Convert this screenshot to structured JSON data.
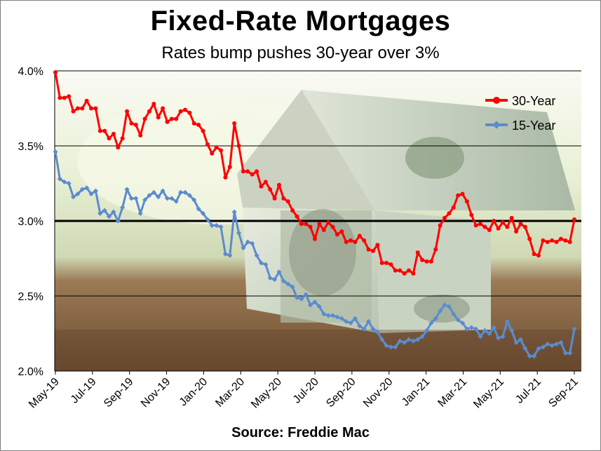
{
  "title": "Fixed-Rate Mortgages",
  "subtitle": "Rates bump pushes 30-year over 3%",
  "source": "Source: Freddie Mac",
  "colors": {
    "thirty": "#ff0000",
    "fifteen": "#5b8bd0"
  },
  "chart_data": {
    "type": "line",
    "title": "Fixed-Rate Mortgages",
    "subtitle": "Rates bump pushes 30-year over 3%",
    "xlabel": "",
    "ylabel": "",
    "ylim": [
      2.0,
      4.0
    ],
    "yticks": [
      "2.0%",
      "2.5%",
      "3.0%",
      "3.5%",
      "4.0%"
    ],
    "yticks_values": [
      2.0,
      2.5,
      3.0,
      3.5,
      4.0
    ],
    "xticks": [
      "May-19",
      "Jul-19",
      "Sep-19",
      "Nov-19",
      "Jan-20",
      "Mar-20",
      "May-20",
      "Jul-20",
      "Sep-20",
      "Nov-20",
      "Jan-21",
      "Mar-21",
      "May-21",
      "Jul-21",
      "Sep-21"
    ],
    "grid": "horizontal",
    "reference_line": 3.0,
    "legend_position": "top-right",
    "series": [
      {
        "name": "30-Year",
        "values": [
          3.99,
          3.82,
          3.82,
          3.83,
          3.73,
          3.75,
          3.75,
          3.8,
          3.75,
          3.75,
          3.6,
          3.6,
          3.55,
          3.58,
          3.49,
          3.55,
          3.73,
          3.65,
          3.64,
          3.57,
          3.68,
          3.73,
          3.78,
          3.69,
          3.75,
          3.66,
          3.68,
          3.68,
          3.73,
          3.74,
          3.72,
          3.65,
          3.64,
          3.6,
          3.51,
          3.45,
          3.49,
          3.47,
          3.29,
          3.36,
          3.65,
          3.5,
          3.33,
          3.33,
          3.31,
          3.33,
          3.23,
          3.26,
          3.21,
          3.15,
          3.24,
          3.15,
          3.13,
          3.07,
          3.03,
          2.98,
          2.98,
          2.96,
          2.88,
          2.98,
          2.94,
          2.99,
          2.96,
          2.91,
          2.93,
          2.86,
          2.87,
          2.86,
          2.9,
          2.87,
          2.81,
          2.8,
          2.84,
          2.72,
          2.72,
          2.71,
          2.67,
          2.67,
          2.65,
          2.67,
          2.65,
          2.79,
          2.74,
          2.73,
          2.73,
          2.81,
          2.97,
          3.02,
          3.05,
          3.09,
          3.17,
          3.18,
          3.13,
          3.04,
          2.97,
          2.98,
          2.96,
          2.94,
          3.0,
          2.95,
          2.99,
          2.96,
          3.02,
          2.93,
          2.98,
          2.96,
          2.88,
          2.78,
          2.77,
          2.87,
          2.86,
          2.87,
          2.86,
          2.88,
          2.87,
          2.86,
          3.01
        ]
      },
      {
        "name": "15-Year",
        "values": [
          3.46,
          3.28,
          3.26,
          3.25,
          3.16,
          3.18,
          3.21,
          3.22,
          3.18,
          3.2,
          3.05,
          3.07,
          3.03,
          3.06,
          3.0,
          3.09,
          3.21,
          3.15,
          3.15,
          3.05,
          3.14,
          3.17,
          3.19,
          3.16,
          3.2,
          3.15,
          3.15,
          3.13,
          3.19,
          3.19,
          3.17,
          3.14,
          3.08,
          3.05,
          3.01,
          2.97,
          2.97,
          2.96,
          2.78,
          2.77,
          3.06,
          2.92,
          2.82,
          2.86,
          2.85,
          2.77,
          2.72,
          2.71,
          2.62,
          2.61,
          2.66,
          2.6,
          2.58,
          2.56,
          2.49,
          2.48,
          2.51,
          2.44,
          2.46,
          2.43,
          2.38,
          2.37,
          2.37,
          2.36,
          2.35,
          2.33,
          2.32,
          2.35,
          2.3,
          2.28,
          2.33,
          2.28,
          2.26,
          2.21,
          2.17,
          2.16,
          2.16,
          2.2,
          2.19,
          2.21,
          2.2,
          2.21,
          2.23,
          2.27,
          2.32,
          2.35,
          2.4,
          2.44,
          2.43,
          2.38,
          2.34,
          2.32,
          2.28,
          2.29,
          2.28,
          2.23,
          2.27,
          2.25,
          2.29,
          2.22,
          2.23,
          2.33,
          2.27,
          2.19,
          2.21,
          2.15,
          2.1,
          2.1,
          2.15,
          2.16,
          2.18,
          2.17,
          2.18,
          2.19,
          2.12,
          2.12,
          2.28
        ]
      }
    ]
  }
}
